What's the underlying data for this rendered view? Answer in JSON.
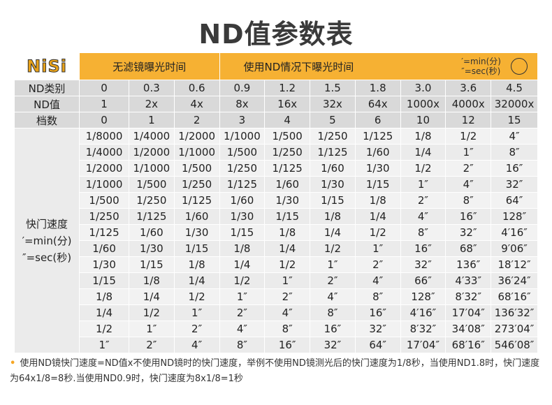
{
  "title": "ND值参数表",
  "header": {
    "logo": "NiSi",
    "no_filter_label": "无滤镜曝光时间",
    "with_filter_label": "使用ND情况下曝光时间",
    "unit_min": "′=min(分)",
    "unit_sec": "″=sec(秒)"
  },
  "rows": {
    "nd_type": {
      "label": "ND类别",
      "values": [
        "0",
        "0.3",
        "0.6",
        "0.9",
        "1.2",
        "1.5",
        "1.8",
        "3.0",
        "3.6",
        "4.5"
      ]
    },
    "nd_value": {
      "label": "ND值",
      "values": [
        "1",
        "2x",
        "4x",
        "8x",
        "16x",
        "32x",
        "64x",
        "1000x",
        "4000x",
        "32000x"
      ]
    },
    "stops": {
      "label": "档数",
      "values": [
        "0",
        "1",
        "2",
        "3",
        "4",
        "5",
        "6",
        "10",
        "12",
        "15"
      ]
    }
  },
  "shutter_label": {
    "line1": "快门速度",
    "line2": "′=min(分)",
    "line3": "″=sec(秒)"
  },
  "shutter_rows": [
    [
      "1/8000",
      "1/4000",
      "1/2000",
      "1/1000",
      "1/500",
      "1/250",
      "1/125",
      "1/8",
      "1/2",
      "4″"
    ],
    [
      "1/4000",
      "1/2000",
      "1/1000",
      "1/500",
      "1/250",
      "1/125",
      "1/60",
      "1/4",
      "1″",
      "8″"
    ],
    [
      "1/2000",
      "1/1000",
      "1/500",
      "1/250",
      "1/125",
      "1/60",
      "1/30",
      "1/2",
      "2″",
      "16″"
    ],
    [
      "1/1000",
      "1/500",
      "1/250",
      "1/125",
      "1/60",
      "1/30",
      "1/15",
      "1″",
      "4″",
      "32″"
    ],
    [
      "1/500",
      "1/250",
      "1/125",
      "1/60",
      "1/30",
      "1/15",
      "1/8",
      "2″",
      "8″",
      "64″"
    ],
    [
      "1/250",
      "1/125",
      "1/60",
      "1/30",
      "1/15",
      "1/8",
      "1/4",
      "4″",
      "16″",
      "128″"
    ],
    [
      "1/125",
      "1/60",
      "1/30",
      "1/15",
      "1/8",
      "1/4",
      "1/2",
      "8″",
      "32″",
      "4′16″"
    ],
    [
      "1/60",
      "1/30",
      "1/15",
      "1/8",
      "1/4",
      "1/2",
      "1″",
      "16″",
      "68″",
      "9′06″"
    ],
    [
      "1/30",
      "1/15",
      "1/8",
      "1/4",
      "1/2",
      "1″",
      "2″",
      "32″",
      "136″",
      "18′12″"
    ],
    [
      "1/15",
      "1/8",
      "1/4",
      "1/2",
      "1″",
      "2″",
      "4″",
      "66″",
      "4′33″",
      "36′24″"
    ],
    [
      "1/8",
      "1/4",
      "1/2",
      "1″",
      "2″",
      "4″",
      "8″",
      "128″",
      "8′32″",
      "68′16″"
    ],
    [
      "1/4",
      "1/2",
      "1″",
      "2″",
      "4″",
      "8″",
      "16″",
      "4′16″",
      "17′04″",
      "136′32″"
    ],
    [
      "1/2",
      "1″",
      "2″",
      "4″",
      "8″",
      "16″",
      "32″",
      "8′32″",
      "34′08″",
      "273′04″"
    ],
    [
      "1″",
      "2″",
      "4″",
      "8″",
      "16″",
      "32″",
      "64″",
      "17′04″",
      "68′16″",
      "546′08″"
    ]
  ],
  "note": "使用ND镜快门速度=ND值x不使用ND镜时的快门速度，举例不使用ND镜测光后的快门速度为1/8秒，当使用ND1.8时，快门速度为64x1/8=8秒.当使用ND0.9时，快门速度为8x1/8=1秒"
}
